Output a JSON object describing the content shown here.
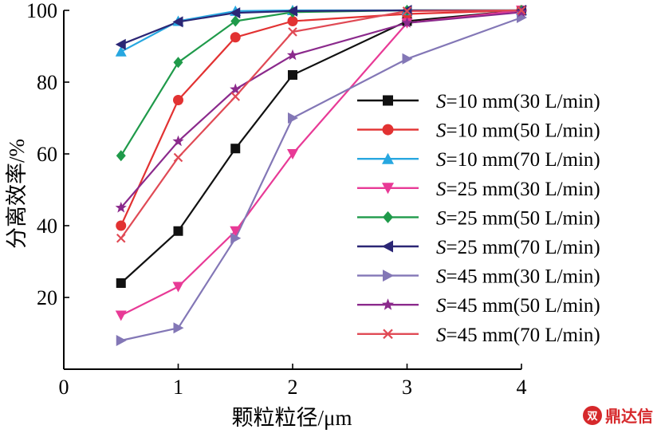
{
  "chart_data": {
    "type": "line",
    "title": "",
    "xlabel": "颗粒粒径/μm",
    "ylabel": "分离效率/%",
    "xlim": [
      0,
      4
    ],
    "ylim": [
      0,
      100
    ],
    "x_ticks": [
      "0",
      "1",
      "2",
      "3",
      "4"
    ],
    "y_ticks": [
      "20",
      "40",
      "60",
      "80",
      "100"
    ],
    "x": [
      0.5,
      1,
      1.5,
      2,
      3,
      4
    ],
    "grid": false,
    "legend_position": "right",
    "series": [
      {
        "name": "S=10 mm(30 L/min)",
        "label_var": "S",
        "label_rest": "=10 mm(30 L/min)",
        "color": "#111111",
        "marker": "square",
        "values": [
          24,
          38.5,
          61.5,
          82,
          97,
          100
        ]
      },
      {
        "name": "S=10 mm(50 L/min)",
        "label_var": "S",
        "label_rest": "=10 mm(50 L/min)",
        "color": "#e23232",
        "marker": "circle",
        "values": [
          40,
          75,
          92.5,
          97,
          99,
          100
        ]
      },
      {
        "name": "S=10 mm(70 L/min)",
        "label_var": "S",
        "label_rest": "=10 mm(70 L/min)",
        "color": "#27a7e0",
        "marker": "triangle-up",
        "values": [
          88.5,
          97,
          99.8,
          100,
          100,
          100
        ]
      },
      {
        "name": "S=25 mm(30 L/min)",
        "label_var": "S",
        "label_rest": "=25 mm(30 L/min)",
        "color": "#e83a96",
        "marker": "triangle-down",
        "values": [
          15,
          23,
          38.5,
          60,
          96.5,
          100
        ]
      },
      {
        "name": "S=25 mm(50 L/min)",
        "label_var": "S",
        "label_rest": "=25 mm(50 L/min)",
        "color": "#1f9a4a",
        "marker": "diamond",
        "values": [
          59.5,
          85.5,
          97,
          99.5,
          100,
          100
        ]
      },
      {
        "name": "S=25 mm(70 L/min)",
        "label_var": "S",
        "label_rest": "=25 mm(70 L/min)",
        "color": "#2b2675",
        "marker": "triangle-left",
        "values": [
          90.5,
          96.8,
          99.3,
          99.8,
          100,
          100
        ]
      },
      {
        "name": "S=45 mm(30 L/min)",
        "label_var": "S",
        "label_rest": "=45 mm(30 L/min)",
        "color": "#8377b6",
        "marker": "triangle-right",
        "values": [
          8,
          11.5,
          36.5,
          70,
          86.5,
          98
        ]
      },
      {
        "name": "S=45 mm(50 L/min)",
        "label_var": "S",
        "label_rest": "=45 mm(50 L/min)",
        "color": "#8b2a8c",
        "marker": "star",
        "values": [
          45,
          63.5,
          78,
          87.5,
          96.5,
          99.5
        ]
      },
      {
        "name": "S=45 mm(70 L/min)",
        "label_var": "S",
        "label_rest": "=45 mm(70 L/min)",
        "color": "#e04a55",
        "marker": "x",
        "values": [
          36.5,
          59,
          76,
          94,
          99.8,
          100
        ]
      }
    ]
  },
  "watermark": {
    "logo_text": "双",
    "text": "鼎达信"
  }
}
